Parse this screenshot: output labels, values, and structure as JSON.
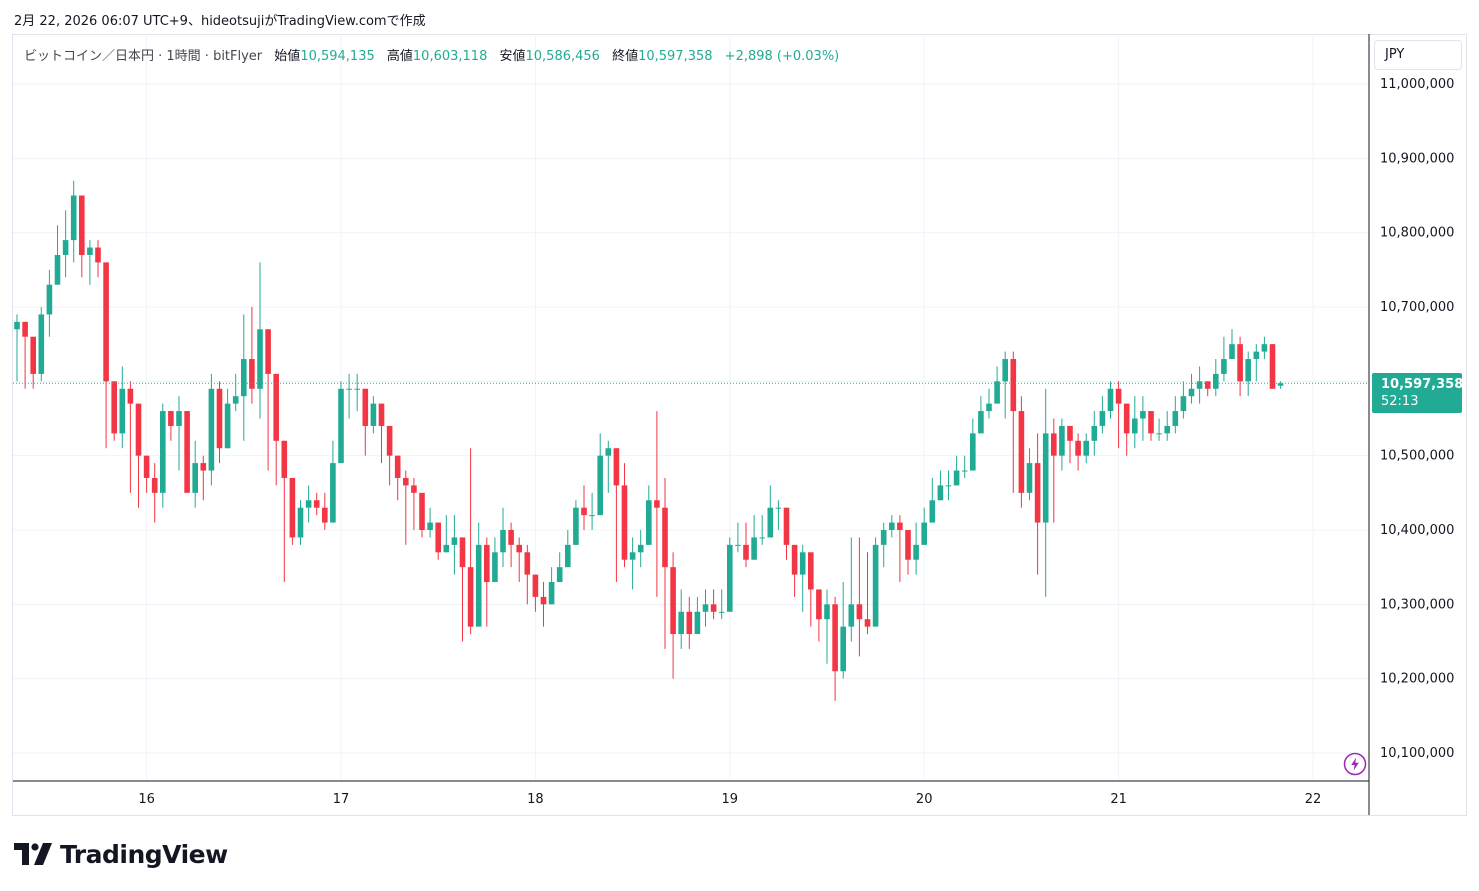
{
  "header": {
    "timestamp": "2月 22, 2026 06:07 UTC+9、hideotsujiがTradingView.comで作成"
  },
  "legend": {
    "symbol": "ビットコイン／日本円 · 1時間 · bitFlyer",
    "open_label": "始値",
    "open": "10,594,135",
    "high_label": "高値",
    "high": "10,603,118",
    "low_label": "安値",
    "low": "10,586,456",
    "close_label": "終値",
    "close": "10,597,358",
    "change": "+2,898 (+0.03%)"
  },
  "currency": "JPY",
  "last_price": {
    "price": "10,597,358",
    "countdown": "52:13"
  },
  "logo": {
    "text": "TradingView"
  },
  "colors": {
    "up": "#22ab94",
    "down": "#f23645",
    "grid": "#f0f3fa",
    "axis": "#131722"
  },
  "chart_data": {
    "type": "candlestick",
    "title": "ビットコイン／日本円 · 1時間 · bitFlyer",
    "y_ticks": [
      10100000,
      10200000,
      10300000,
      10400000,
      10500000,
      10600000,
      10700000,
      10800000,
      10900000,
      11000000
    ],
    "y_tick_labels": [
      "10,100,000",
      "10,200,000",
      "10,300,000",
      "10,400,000",
      "10,500,000",
      "10,600,000",
      "10,700,000",
      "10,800,000",
      "10,900,000",
      "11,000,000"
    ],
    "x_ticks": [
      {
        "label": "16",
        "index": 16
      },
      {
        "label": "17",
        "index": 40
      },
      {
        "label": "18",
        "index": 64
      },
      {
        "label": "19",
        "index": 88
      },
      {
        "label": "20",
        "index": 112
      },
      {
        "label": "21",
        "index": 136
      },
      {
        "label": "22",
        "index": 160
      }
    ],
    "ylim": [
      10050000,
      11050000
    ],
    "last_price": 10597358,
    "closes": [
      10680000,
      10660000,
      10610000,
      10690000,
      10730000,
      10770000,
      10790000,
      10850000,
      10770000,
      10780000,
      10760000,
      10600000,
      10530000,
      10590000,
      10570000,
      10500000,
      10470000,
      10450000,
      10560000,
      10540000,
      10560000,
      10450000,
      10490000,
      10480000,
      10590000,
      10510000,
      10570000,
      10580000,
      10630000,
      10590000,
      10670000,
      10610000,
      10520000,
      10470000,
      10390000,
      10430000,
      10440000,
      10430000,
      10410000,
      10490000,
      10590000,
      10590000,
      10590000,
      10540000,
      10570000,
      10540000,
      10500000,
      10470000,
      10460000,
      10450000,
      10400000,
      10410000,
      10370000,
      10380000,
      10390000,
      10350000,
      10270000,
      10380000,
      10330000,
      10370000,
      10400000,
      10380000,
      10370000,
      10340000,
      10310000,
      10300000,
      10330000,
      10350000,
      10380000,
      10430000,
      10420000,
      10420000,
      10500000,
      10510000,
      10460000,
      10360000,
      10370000,
      10380000,
      10440000,
      10430000,
      10350000,
      10260000,
      10290000,
      10260000,
      10290000,
      10300000,
      10290000,
      10290000,
      10380000,
      10380000,
      10360000,
      10390000,
      10390000,
      10430000,
      10430000,
      10380000,
      10340000,
      10370000,
      10320000,
      10280000,
      10300000,
      10210000,
      10270000,
      10300000,
      10280000,
      10270000,
      10380000,
      10400000,
      10410000,
      10400000,
      10360000,
      10380000,
      10410000,
      10440000,
      10460000,
      10460000,
      10480000,
      10480000,
      10530000,
      10560000,
      10570000,
      10600000,
      10630000,
      10560000,
      10450000,
      10490000,
      10410000,
      10530000,
      10500000,
      10540000,
      10520000,
      10500000,
      10520000,
      10540000,
      10560000,
      10590000,
      10570000,
      10530000,
      10550000,
      10560000,
      10530000,
      10530000,
      10540000,
      10560000,
      10580000,
      10590000,
      10600000,
      10590000,
      10610000,
      10630000,
      10650000,
      10600000,
      10630000,
      10640000,
      10650000,
      10590000,
      10597358
    ],
    "highs": [
      10690000,
      10670000,
      10620000,
      10700000,
      10750000,
      10810000,
      10830000,
      10870000,
      10820000,
      10790000,
      10790000,
      10650000,
      10560000,
      10620000,
      10600000,
      10530000,
      10500000,
      10490000,
      10570000,
      10560000,
      10580000,
      10510000,
      10520000,
      10500000,
      10610000,
      10600000,
      10590000,
      10610000,
      10690000,
      10700000,
      10760000,
      10620000,
      10550000,
      10490000,
      10440000,
      10440000,
      10460000,
      10450000,
      10450000,
      10520000,
      10600000,
      10610000,
      10610000,
      10570000,
      10580000,
      10570000,
      10520000,
      10500000,
      10480000,
      10470000,
      10430000,
      10430000,
      10410000,
      10420000,
      10420000,
      10380000,
      10510000,
      10410000,
      10390000,
      10390000,
      10430000,
      10410000,
      10390000,
      10380000,
      10340000,
      10330000,
      10350000,
      10370000,
      10400000,
      10440000,
      10460000,
      10450000,
      10530000,
      10520000,
      10500000,
      10490000,
      10390000,
      10400000,
      10460000,
      10560000,
      10470000,
      10370000,
      10320000,
      10310000,
      10310000,
      10320000,
      10320000,
      10320000,
      10390000,
      10410000,
      10410000,
      10420000,
      10420000,
      10460000,
      10440000,
      10410000,
      10380000,
      10380000,
      10340000,
      10310000,
      10320000,
      10310000,
      10330000,
      10390000,
      10390000,
      10370000,
      10390000,
      10410000,
      10420000,
      10420000,
      10400000,
      10410000,
      10430000,
      10470000,
      10480000,
      10480000,
      10500000,
      10500000,
      10550000,
      10580000,
      10590000,
      10620000,
      10640000,
      10640000,
      10580000,
      10510000,
      10530000,
      10590000,
      10550000,
      10550000,
      10540000,
      10530000,
      10530000,
      10560000,
      10580000,
      10600000,
      10600000,
      10570000,
      10580000,
      10580000,
      10560000,
      10550000,
      10560000,
      10580000,
      10600000,
      10610000,
      10620000,
      10600000,
      10630000,
      10660000,
      10670000,
      10660000,
      10640000,
      10650000,
      10660000,
      10650000,
      10600000
    ],
    "lows": [
      10600000,
      10590000,
      10590000,
      10600000,
      10660000,
      10730000,
      10740000,
      10760000,
      10740000,
      10730000,
      10740000,
      10510000,
      10520000,
      10510000,
      10450000,
      10430000,
      10450000,
      10410000,
      10430000,
      10520000,
      10480000,
      10450000,
      10430000,
      10440000,
      10460000,
      10490000,
      10510000,
      10560000,
      10520000,
      10570000,
      10550000,
      10480000,
      10460000,
      10330000,
      10380000,
      10380000,
      10410000,
      10420000,
      10400000,
      10410000,
      10500000,
      10550000,
      10560000,
      10500000,
      10530000,
      10490000,
      10460000,
      10440000,
      10380000,
      10400000,
      10390000,
      10390000,
      10360000,
      10370000,
      10340000,
      10250000,
      10260000,
      10300000,
      10270000,
      10330000,
      10350000,
      10350000,
      10330000,
      10300000,
      10290000,
      10270000,
      10300000,
      10330000,
      10370000,
      10380000,
      10400000,
      10400000,
      10460000,
      10450000,
      10330000,
      10350000,
      10320000,
      10350000,
      10390000,
      10310000,
      10240000,
      10200000,
      10240000,
      10240000,
      10260000,
      10270000,
      10280000,
      10280000,
      10330000,
      10370000,
      10350000,
      10360000,
      10380000,
      10390000,
      10400000,
      10360000,
      10310000,
      10290000,
      10270000,
      10250000,
      10220000,
      10170000,
      10200000,
      10250000,
      10230000,
      10260000,
      10270000,
      10350000,
      10390000,
      10330000,
      10340000,
      10340000,
      10400000,
      10420000,
      10440000,
      10440000,
      10470000,
      10470000,
      10510000,
      10540000,
      10550000,
      10580000,
      10550000,
      10450000,
      10430000,
      10440000,
      10340000,
      10310000,
      10410000,
      10480000,
      10490000,
      10480000,
      10490000,
      10500000,
      10530000,
      10550000,
      10510000,
      10500000,
      10510000,
      10520000,
      10520000,
      10520000,
      10520000,
      10530000,
      10550000,
      10570000,
      10570000,
      10580000,
      10580000,
      10600000,
      10630000,
      10580000,
      10580000,
      10600000,
      10630000,
      10590000,
      10590000
    ],
    "opens": [
      10670000,
      10680000,
      10660000,
      10610000,
      10690000,
      10730000,
      10770000,
      10790000,
      10850000,
      10770000,
      10780000,
      10760000,
      10600000,
      10530000,
      10590000,
      10570000,
      10500000,
      10470000,
      10450000,
      10560000,
      10540000,
      10560000,
      10450000,
      10490000,
      10480000,
      10590000,
      10510000,
      10570000,
      10580000,
      10630000,
      10590000,
      10670000,
      10610000,
      10520000,
      10470000,
      10390000,
      10430000,
      10440000,
      10430000,
      10410000,
      10490000,
      10590000,
      10590000,
      10590000,
      10540000,
      10570000,
      10540000,
      10500000,
      10470000,
      10460000,
      10450000,
      10400000,
      10410000,
      10370000,
      10380000,
      10390000,
      10350000,
      10270000,
      10380000,
      10330000,
      10370000,
      10400000,
      10380000,
      10370000,
      10340000,
      10310000,
      10300000,
      10330000,
      10350000,
      10380000,
      10430000,
      10420000,
      10420000,
      10500000,
      10510000,
      10460000,
      10360000,
      10370000,
      10380000,
      10440000,
      10430000,
      10350000,
      10260000,
      10290000,
      10260000,
      10290000,
      10300000,
      10290000,
      10290000,
      10380000,
      10380000,
      10360000,
      10390000,
      10390000,
      10430000,
      10430000,
      10380000,
      10340000,
      10370000,
      10320000,
      10280000,
      10300000,
      10210000,
      10270000,
      10300000,
      10280000,
      10270000,
      10380000,
      10400000,
      10410000,
      10400000,
      10360000,
      10380000,
      10410000,
      10440000,
      10460000,
      10460000,
      10480000,
      10480000,
      10530000,
      10560000,
      10570000,
      10600000,
      10630000,
      10560000,
      10450000,
      10490000,
      10410000,
      10530000,
      10500000,
      10540000,
      10520000,
      10500000,
      10520000,
      10540000,
      10560000,
      10590000,
      10570000,
      10530000,
      10550000,
      10560000,
      10530000,
      10530000,
      10540000,
      10560000,
      10580000,
      10590000,
      10600000,
      10590000,
      10610000,
      10630000,
      10650000,
      10600000,
      10630000,
      10640000,
      10650000,
      10594135
    ]
  }
}
